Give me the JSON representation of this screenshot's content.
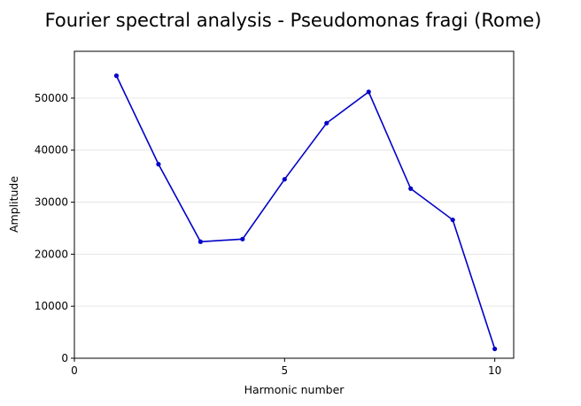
{
  "chart_data": {
    "type": "line",
    "title": "Fourier spectral analysis - Pseudomonas fragi (Rome)",
    "xlabel": "Harmonic number",
    "ylabel": "Amplitude",
    "x": [
      1,
      2,
      3,
      4,
      5,
      6,
      7,
      8,
      9,
      10
    ],
    "series": [
      {
        "values": [
          54300,
          37300,
          22400,
          22900,
          34400,
          45200,
          51200,
          32600,
          26600,
          1800
        ],
        "color": "#0000c8",
        "marker": "circle"
      }
    ],
    "xlim": [
      0,
      10.45
    ],
    "ylim": [
      0,
      59000
    ],
    "xticks": [
      0,
      5,
      10
    ],
    "yticks": [
      0,
      10000,
      20000,
      30000,
      40000,
      50000
    ],
    "grid": {
      "y": true,
      "x": false
    }
  }
}
